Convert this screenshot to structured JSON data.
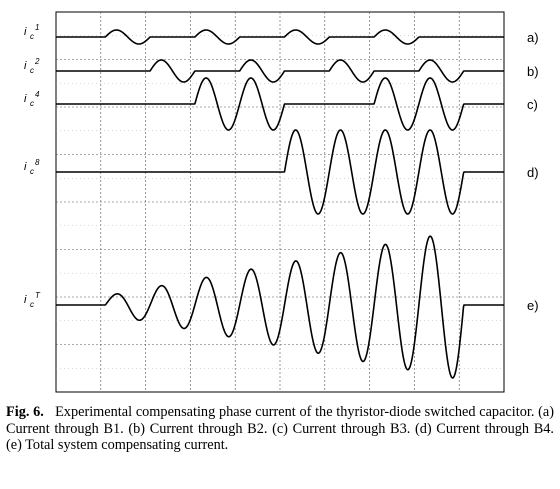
{
  "chart_data": {
    "type": "line",
    "grid": true,
    "x_divisions": 10,
    "y_divisions": 8,
    "series": [
      {
        "name": "ic1",
        "label_base": "i",
        "label_sub": "c",
        "label_sup": "1",
        "tag": "a)",
        "amplitude": 0.06,
        "bursts": [
          [
            1.1,
            2.1
          ],
          [
            3.1,
            4.1
          ],
          [
            5.1,
            6.1
          ],
          [
            7.1,
            8.1
          ]
        ],
        "shape": "const"
      },
      {
        "name": "ic2",
        "label_base": "i",
        "label_sub": "c",
        "label_sup": "2",
        "tag": "b)",
        "amplitude": 0.1,
        "bursts": [
          [
            2.1,
            3.1
          ],
          [
            4.1,
            5.1
          ],
          [
            6.1,
            7.1
          ],
          [
            8.1,
            9.1
          ]
        ],
        "shape": "const"
      },
      {
        "name": "ic4",
        "label_base": "i",
        "label_sub": "c",
        "label_sup": "4",
        "tag": "c)",
        "amplitude": 0.23,
        "bursts": [
          [
            3.1,
            5.1
          ],
          [
            7.1,
            9.1
          ]
        ],
        "shape": "const"
      },
      {
        "name": "ic8",
        "label_base": "i",
        "label_sub": "c",
        "label_sup": "8",
        "tag": "d)",
        "amplitude": 0.52,
        "bursts": [
          [
            5.1,
            9.1
          ]
        ],
        "shape": "const"
      },
      {
        "name": "icT",
        "label_base": "i",
        "label_sub": "c",
        "label_sup": "T",
        "tag": "e)",
        "amplitude": 1.0,
        "bursts": [
          [
            1.1,
            9.1
          ]
        ],
        "shape": "ramp"
      }
    ]
  },
  "caption": {
    "fig_label": "Fig. 6.",
    "text": "Experimental compensating phase current of the thyristor-diode switched capacitor. (a) Current through B1. (b) Current through B2. (c) Current through B3. (d) Current through B4. (e) Total system compensating current."
  }
}
